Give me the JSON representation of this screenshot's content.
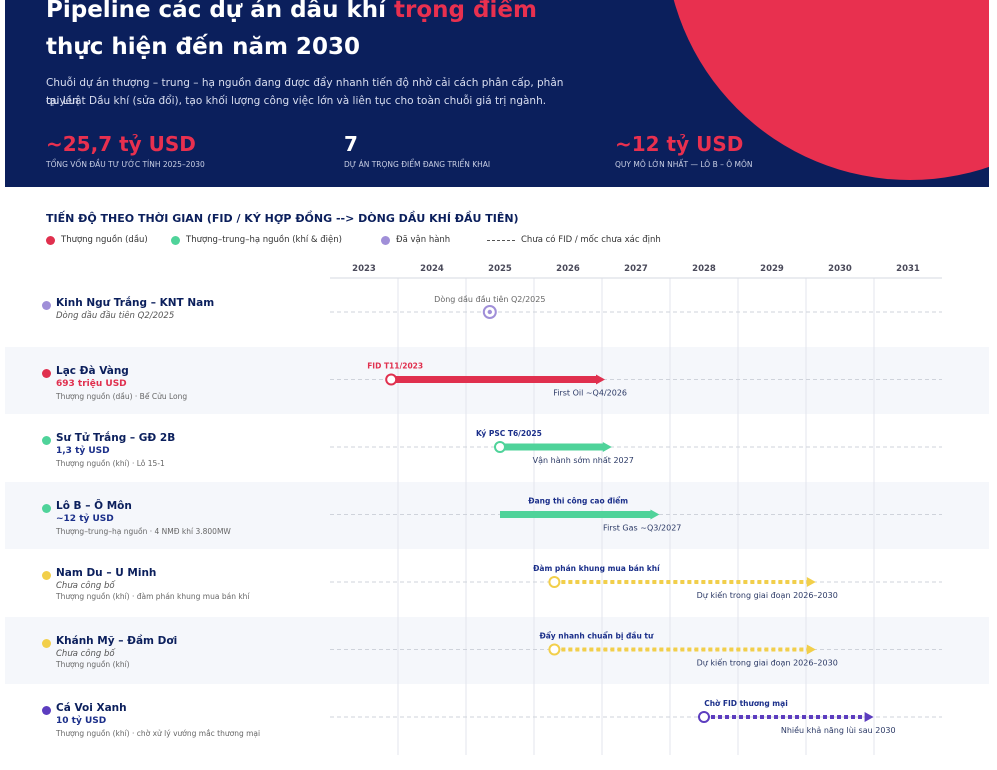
{
  "header": {
    "title_line1": "Pipeline các dự án dầu khí ",
    "title_highlight": "trọng điểm",
    "title_line2": "thực hiện đến năm 2030",
    "desc_line1": "Chuỗi dự án thượng – trung – hạ nguồn đang được đẩy nhanh tiến độ nhờ cải cách phân cấp, phân quyền",
    "desc_line2": "tại Luật Dầu khí (sửa đổi), tạo khối lượng công việc lớn và liên tục cho toàn chuỗi giá trị ngành.",
    "stats": [
      {
        "value": "~25,7 tỷ USD",
        "label": "TỔNG VỐN ĐẦU TƯ ƯỚC TÍNH 2025–2030"
      },
      {
        "value": "7",
        "label": "DỰ ÁN TRỌNG ĐIỂM ĐANG TRIỂN KHAI"
      },
      {
        "value": "~12 tỷ USD",
        "label": "QUY MÔ LỚN NHẤT — LÔ B – Ô MÔN"
      }
    ]
  },
  "chart_data": {
    "type": "timeline",
    "title": "TIẾN ĐỘ THEO THỜI GIAN (FID / KÝ HỢP ĐỒNG  -->  DÒNG DẦU KHÍ ĐẦU TIÊN)",
    "legend": [
      {
        "label": "Thượng nguồn (dầu)",
        "color": "#e0304e",
        "style": "dot"
      },
      {
        "label": "Thượng–trung–hạ nguồn (khí & điện)",
        "color": "#4fd39a",
        "style": "dot"
      },
      {
        "label": "Đã vận hành",
        "color": "#a08fd8",
        "style": "dot"
      },
      {
        "label": "Chưa có FID / mốc chưa xác định",
        "color": "#555555",
        "style": "dashed"
      }
    ],
    "years": [
      "2023",
      "2024",
      "2025",
      "2026",
      "2027",
      "2028",
      "2029",
      "2030",
      "2031"
    ],
    "x_range": [
      2022.5,
      2031.5
    ],
    "projects": [
      {
        "name": "Kinh Ngư Trắng – KNT Nam",
        "value": "",
        "sub": "",
        "italic": "Dòng dầu đầu tiên Q2/2025",
        "color": "#a08fd8",
        "style": "milestone",
        "start": 2024.85,
        "end": null,
        "label_above": "Dòng dầu đầu tiên Q2/2025",
        "label_below": "",
        "striped": true
      },
      {
        "name": "Lạc Đà Vàng",
        "value": "693 triệu USD",
        "sub": "Thượng nguồn (dầu) · Bể Cửu Long",
        "italic": "",
        "color": "#e0304e",
        "style": "solid",
        "start": 2023.4,
        "end": 2026.5,
        "label_above": "FID T11/2023",
        "label_below": "First Oil ~Q4/2026",
        "striped": false
      },
      {
        "name": "Sư Tử Trắng – GĐ 2B",
        "value": "1,3 tỷ USD",
        "sub": "Thượng nguồn (khí) · Lô 15-1",
        "italic": "",
        "color": "#4fd39a",
        "style": "solid",
        "start": 2025.0,
        "end": 2026.6,
        "label_above": "Ký PSC T6/2025",
        "label_below": "Vận hành sớm nhất 2027",
        "striped": true
      },
      {
        "name": "Lô B – Ô Môn",
        "value": "~12 tỷ USD",
        "sub": "Thượng–trung–hạ nguồn · 4 NMĐ khí 3.800MW",
        "italic": "",
        "color": "#4fd39a",
        "style": "solid-nodot",
        "start": 2025.0,
        "end": 2027.3,
        "label_above": "Đang thi công cao điểm",
        "label_below": "First Gas ~Q3/2027",
        "striped": false
      },
      {
        "name": "Nam Du – U Minh",
        "value": "",
        "sub": "Thượng nguồn (khí) · đàm phán khung mua bán khí",
        "italic": "Chưa công bố",
        "color": "#f2cf4a",
        "style": "dotted",
        "start": 2025.8,
        "end": 2029.6,
        "label_above": "Đàm phán khung mua bán khí",
        "label_below": "Dự kiến trong giai đoạn 2026–2030",
        "striped": true
      },
      {
        "name": "Khánh Mỹ – Đầm Dơi",
        "value": "",
        "sub": "Thượng nguồn (khí)",
        "italic": "Chưa công bố",
        "color": "#f2cf4a",
        "style": "dotted",
        "start": 2025.8,
        "end": 2029.6,
        "label_above": "Đẩy nhanh chuẩn bị đầu tư",
        "label_below": "Dự kiến trong giai đoạn 2026–2030",
        "striped": false
      },
      {
        "name": "Cá Voi Xanh",
        "value": "10 tỷ USD",
        "sub": "Thượng nguồn (khí) · chờ xử lý vướng mắc thương mại",
        "italic": "",
        "color": "#5c3dbf",
        "style": "dotted",
        "start": 2028.0,
        "end": 2030.45,
        "label_above": "Chờ FID thương mại",
        "label_below": "Nhiều khả năng lùi sau 2030",
        "striped": true
      }
    ]
  }
}
